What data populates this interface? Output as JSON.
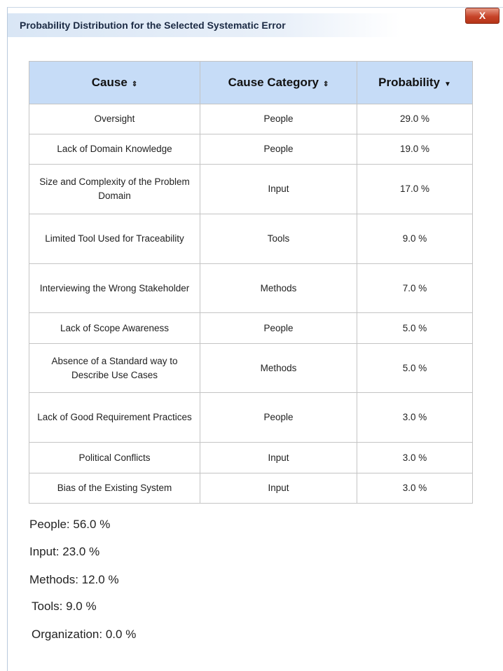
{
  "header": {
    "title": "Probability Distribution for the Selected Systematic Error",
    "close": "X"
  },
  "table": {
    "headers": [
      "Cause",
      "Cause Category",
      "Probability"
    ],
    "rows": [
      [
        "Oversight",
        "People",
        "29.0 %"
      ],
      [
        "Lack of Domain Knowledge",
        "People",
        "19.0 %"
      ],
      [
        "Size and Complexity of the Problem Domain",
        "Input",
        "17.0 %"
      ],
      [
        "Limited Tool Used for Traceability",
        "Tools",
        "9.0 %"
      ],
      [
        "Interviewing the Wrong Stakeholder",
        "Methods",
        "7.0 %"
      ],
      [
        "Lack of Scope Awareness",
        "People",
        "5.0 %"
      ],
      [
        "Absence of a Standard way to Describe Use Cases",
        "Methods",
        "5.0 %"
      ],
      [
        "Lack of Good Requirement Practices",
        "People",
        "3.0 %"
      ],
      [
        "Political Conflicts",
        "Input",
        "3.0 %"
      ],
      [
        "Bias of the Existing System",
        "Input",
        "3.0 %"
      ]
    ]
  },
  "summary": [
    "People: 56.0 %",
    "Input: 23.0 %",
    "Methods: 12.0 %",
    "Tools: 9.0 %",
    "Organization: 0.0 %"
  ]
}
